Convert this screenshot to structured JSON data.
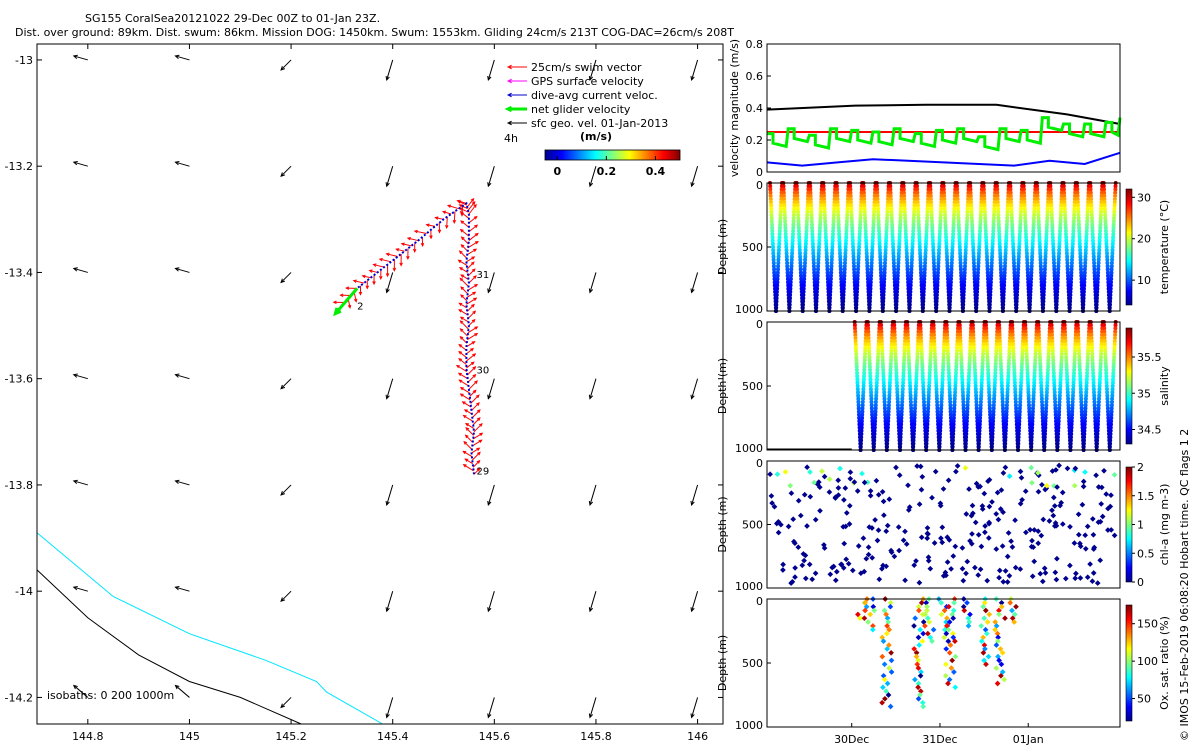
{
  "header": {
    "line1": "SG155 CoralSea20121022 29-Dec 00Z to 01-Jan 23Z.",
    "line2": "Dist. over ground: 89km. Dist. swum: 86km. Mission DOG: 1450km. Swum: 1553km. Gliding 24cm/s 213T COG-DAC=26cm/s 208T"
  },
  "side_note": "© IMOS 15-Feb-2019 06:08:20 Hobart time. QC flags 1 2",
  "colors": {
    "swim": "#ff0000",
    "gps": "#ff00ff",
    "dac": "#0000cc",
    "net": "#00ee00",
    "geo": "#000000",
    "iso0": "#000000",
    "iso200": "#00e5ff",
    "black_line": "#000000"
  },
  "chart_data": [
    {
      "type": "line",
      "panel": "map",
      "xlim": [
        144.7,
        146.05
      ],
      "ylim": [
        -14.25,
        -12.97
      ],
      "xticks": [
        144.8,
        145,
        145.2,
        145.4,
        145.6,
        145.8,
        146
      ],
      "xtick_labels": [
        "144.8",
        "145",
        "145.2",
        "145.4",
        "145.6",
        "145.8",
        "146"
      ],
      "yticks": [
        -13,
        -13.2,
        -13.4,
        -13.6,
        -13.8,
        -14,
        -14.2
      ],
      "ytick_labels": [
        "-13",
        "-13.2",
        "-13.4",
        "-13.6",
        "-13.8",
        "-14",
        "-14.2"
      ],
      "legend": [
        {
          "label": "25cm/s swim vector",
          "color": "#ff0000"
        },
        {
          "label": "GPS surface velocity",
          "color": "#ff00ff"
        },
        {
          "label": "dive-avg current veloc.",
          "color": "#0000cc"
        },
        {
          "label": "net glider velocity",
          "color": "#00ee00"
        },
        {
          "label": "sfc geo. vel. 01-Jan-2013",
          "color": "#000000"
        }
      ],
      "legend_extra": "4h",
      "colorbar": {
        "label": "(m/s)",
        "ticks": [
          "0",
          "0.2",
          "0.4"
        ],
        "range": [
          -0.05,
          0.5
        ]
      },
      "track": [
        {
          "lon": 145.56,
          "lat": -13.78
        },
        {
          "lon": 145.555,
          "lat": -13.74
        },
        {
          "lon": 145.56,
          "lat": -13.7
        },
        {
          "lon": 145.555,
          "lat": -13.66
        },
        {
          "lon": 145.55,
          "lat": -13.62
        },
        {
          "lon": 145.545,
          "lat": -13.58
        },
        {
          "lon": 145.545,
          "lat": -13.54
        },
        {
          "lon": 145.55,
          "lat": -13.5
        },
        {
          "lon": 145.545,
          "lat": -13.46
        },
        {
          "lon": 145.55,
          "lat": -13.42
        },
        {
          "lon": 145.545,
          "lat": -13.38
        },
        {
          "lon": 145.55,
          "lat": -13.34
        },
        {
          "lon": 145.55,
          "lat": -13.29
        },
        {
          "lon": 145.545,
          "lat": -13.27
        },
        {
          "lon": 145.5,
          "lat": -13.3
        },
        {
          "lon": 145.45,
          "lat": -13.34
        },
        {
          "lon": 145.41,
          "lat": -13.37
        },
        {
          "lon": 145.37,
          "lat": -13.4
        },
        {
          "lon": 145.33,
          "lat": -13.43
        },
        {
          "lon": 145.295,
          "lat": -13.47
        }
      ],
      "day_labels": [
        {
          "text": "29",
          "lon": 145.565,
          "lat": -13.78
        },
        {
          "text": "30",
          "lon": 145.565,
          "lat": -13.59
        },
        {
          "text": "31",
          "lon": 145.565,
          "lat": -13.41
        },
        {
          "text": "2",
          "lon": 145.33,
          "lat": -13.47
        }
      ],
      "geo_grid_lon": [
        144.8,
        145.0,
        145.2,
        145.4,
        145.6,
        145.8,
        146.0
      ],
      "geo_grid_lat": [
        -13.0,
        -13.2,
        -13.4,
        -13.6,
        -13.8,
        -14.0,
        -14.2
      ],
      "isobaths": {
        "label": "isobaths: 0   200  1000m",
        "iso0": [
          [
            144.7,
            -13.96
          ],
          [
            144.8,
            -14.05
          ],
          [
            144.9,
            -14.12
          ],
          [
            145.0,
            -14.17
          ],
          [
            145.1,
            -14.2
          ],
          [
            145.22,
            -14.25
          ]
        ],
        "iso200": [
          [
            144.7,
            -13.89
          ],
          [
            144.85,
            -14.01
          ],
          [
            145.0,
            -14.08
          ],
          [
            145.15,
            -14.13
          ],
          [
            145.25,
            -14.17
          ],
          [
            145.27,
            -14.19
          ],
          [
            145.38,
            -14.25
          ]
        ]
      }
    },
    {
      "type": "line",
      "panel": "velocity",
      "ylabel": "velocity magnitude (m/s)",
      "ylim": [
        0,
        0.8
      ],
      "yticks": [
        "0",
        "0.2",
        "0.4",
        "0.6",
        "0.8"
      ],
      "xlim": [
        0,
        100
      ],
      "series": [
        {
          "color": "#000000",
          "x": [
            0,
            25,
            45,
            65,
            85,
            100
          ],
          "values": [
            0.39,
            0.415,
            0.42,
            0.42,
            0.36,
            0.3
          ]
        },
        {
          "color": "#ff0000",
          "x": [
            0,
            100
          ],
          "values": [
            0.25,
            0.25
          ]
        },
        {
          "color": "#0000ff",
          "x": [
            0,
            10,
            20,
            30,
            40,
            50,
            60,
            70,
            80,
            90,
            100
          ],
          "values": [
            0.06,
            0.04,
            0.06,
            0.08,
            0.07,
            0.06,
            0.05,
            0.04,
            0.07,
            0.05,
            0.12
          ]
        },
        {
          "color": "#00ee00",
          "x": [
            0,
            6,
            12,
            18,
            24,
            30,
            36,
            42,
            48,
            54,
            60,
            66,
            72,
            78,
            84,
            90,
            96,
            100
          ],
          "values": [
            0.24,
            0.27,
            0.23,
            0.27,
            0.26,
            0.25,
            0.27,
            0.24,
            0.26,
            0.27,
            0.22,
            0.27,
            0.26,
            0.34,
            0.3,
            0.3,
            0.31,
            0.34
          ]
        }
      ]
    },
    {
      "type": "scatter",
      "panel": "temperature",
      "ylabel": "Depth (m)",
      "yticks": [
        "0",
        "500",
        "1000"
      ],
      "ylim": [
        1000,
        0
      ],
      "colorbar": {
        "label": "temperature (°C)",
        "ticks": [
          "10",
          "20",
          "30"
        ],
        "range": [
          4,
          32
        ]
      },
      "n_dives": 26,
      "start_fraction": 0
    },
    {
      "type": "scatter",
      "panel": "salinity",
      "ylabel": "Depth (m)",
      "yticks": [
        "0",
        "500",
        "1000"
      ],
      "ylim": [
        1000,
        0
      ],
      "colorbar": {
        "label": "salinity",
        "ticks": [
          "34.5",
          "35",
          "35.5"
        ],
        "range": [
          34.3,
          35.9
        ]
      },
      "n_dives": 20,
      "start_fraction": 0.24
    },
    {
      "type": "scatter",
      "panel": "chlorophyll",
      "ylabel": "Depth (m)",
      "yticks": [
        "0",
        "500",
        "1000"
      ],
      "ylim": [
        1000,
        0
      ],
      "colorbar": {
        "label": "chl-a (mg m-3)",
        "ticks": [
          "0",
          "0.5",
          "1",
          "1.5",
          "2"
        ],
        "range": [
          0,
          2
        ]
      }
    },
    {
      "type": "scatter",
      "panel": "oxygen",
      "ylabel": "Depth (m)",
      "yticks": [
        "0",
        "500",
        "1000"
      ],
      "ylim": [
        1000,
        0
      ],
      "colorbar": {
        "label": "Ox. sat. ratio (%)",
        "ticks": [
          "50",
          "100",
          "150"
        ],
        "range": [
          20,
          175
        ]
      },
      "xticks": [
        "30Dec",
        "31Dec",
        "01Jan"
      ],
      "xtick_positions": [
        0.24,
        0.49,
        0.74
      ]
    }
  ]
}
